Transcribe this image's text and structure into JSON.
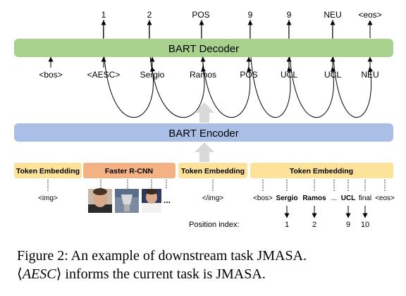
{
  "decoder_outputs": [
    "1",
    "2",
    "POS",
    "9",
    "9",
    "NEU",
    "<eos>"
  ],
  "decoder_inputs": [
    "<bos>",
    "<AESC>",
    "Sergio",
    "Ramos",
    "POS",
    "UCL",
    "UCL",
    "NEU"
  ],
  "decoder_label": "BART Decoder",
  "encoder_label": "BART Encoder",
  "embedding_boxes": [
    "Token Embedding",
    "Faster R-CNN",
    "Token Embedding",
    "Token Embedding"
  ],
  "encoder_inputs_left": [
    "<img>",
    "</img>"
  ],
  "encoder_inputs_text": [
    "<bos>",
    "Sergio",
    "Ramos",
    "...",
    "UCL",
    "final",
    "<eos>"
  ],
  "image_ellipsis": "...",
  "position_label": "Position index:",
  "positions": [
    "1",
    "2",
    "9",
    "10"
  ],
  "caption": {
    "line1": "Figure 2:  An example of downstream task JMASA.",
    "line2_token": "AESC",
    "line2_rest": " informs the current task is JMASA."
  },
  "colors": {
    "decoder": "#a9d18e",
    "encoder": "#a9bfe6",
    "token_embedding": "#fde39a",
    "faster_rcnn": "#f4b183",
    "up_arrow": "#d9d9d9"
  }
}
